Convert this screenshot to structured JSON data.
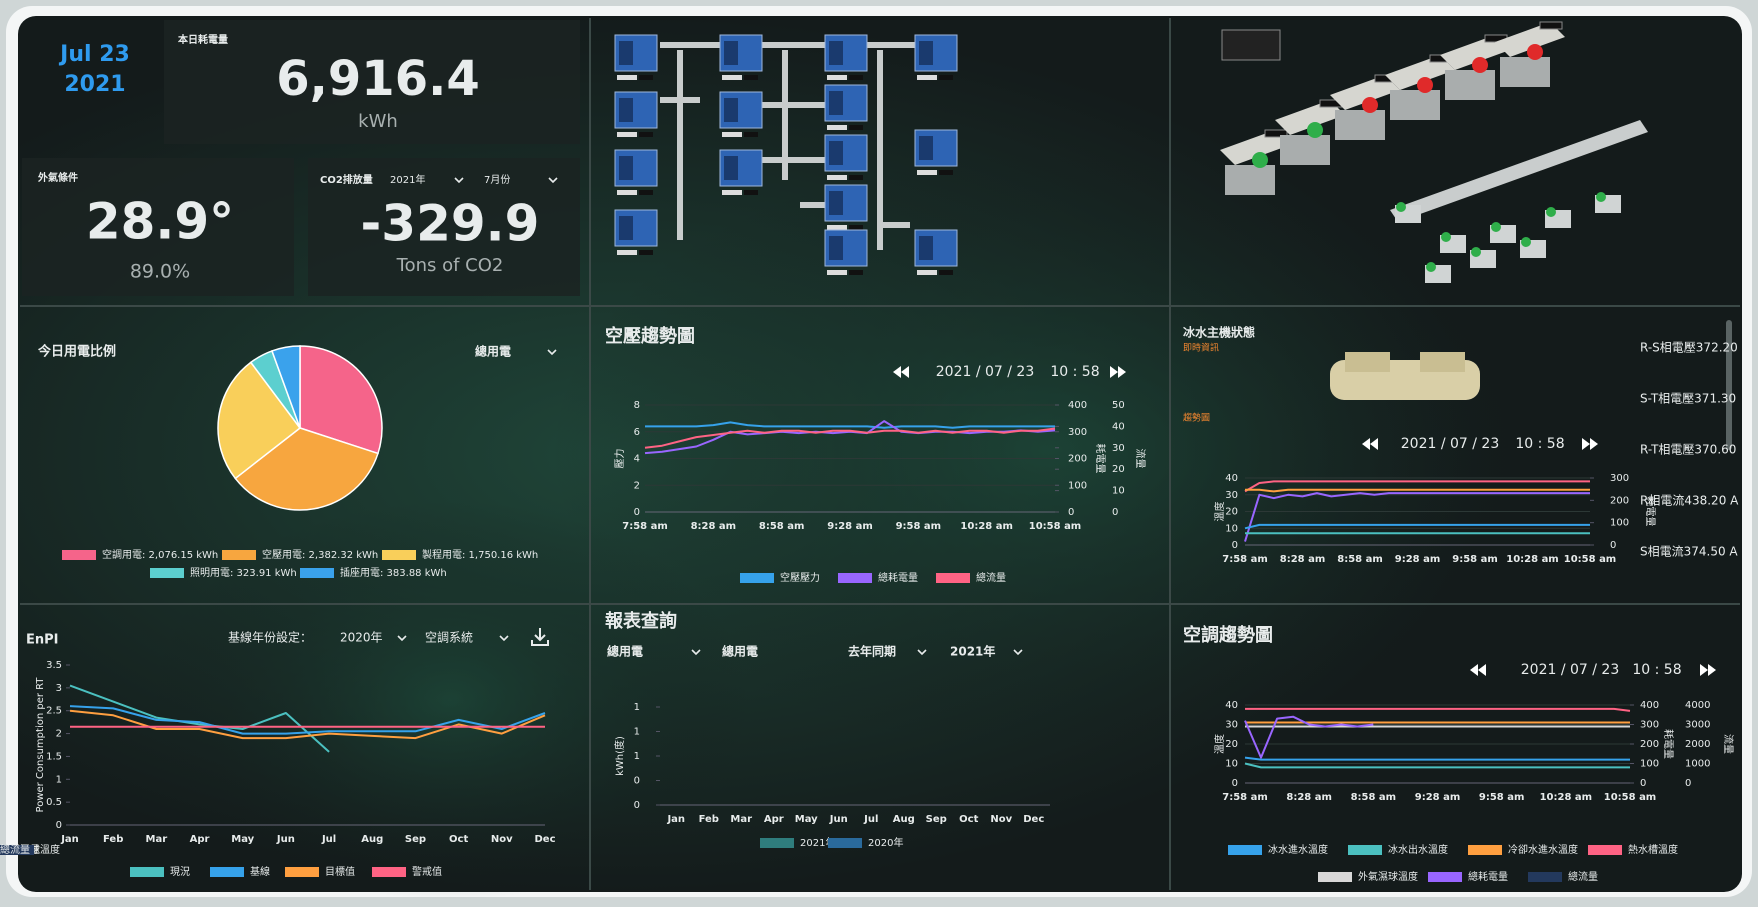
{
  "date": {
    "month_day": "Jul 23",
    "year": "2021"
  },
  "daily_energy": {
    "label": "本日耗電量",
    "value": "6,916.4",
    "unit": "kWh"
  },
  "weather": {
    "label": "外氣條件",
    "temperature": "28.9°",
    "humidity": "89.0%"
  },
  "co2": {
    "label": "CO2排放量",
    "year": "2021年",
    "month": "7月份",
    "value": "-329.9",
    "unit": "Tons of CO2"
  },
  "pie_panel": {
    "filter": "總用電"
  },
  "air_nav": {
    "date": "2021 / 07 / 23",
    "time": "10 : 58"
  },
  "chiller_panel": {
    "title": "冰水主機狀態",
    "realtime": "即時資訊",
    "trend": "趨勢圖",
    "date": "2021 / 07 / 23",
    "time": "10 : 58",
    "readings": [
      "R-S相電壓372.20",
      "S-T相電壓371.30",
      "R-T相電壓370.60",
      "R相電流438.20 A",
      "S相電流374.50 A"
    ]
  },
  "hvac_nav": {
    "date": "2021 / 07 / 23",
    "time": "10 : 58"
  },
  "enpi_panel": {
    "baseline_label": "基線年份設定：",
    "baseline_year": "2020年",
    "system": "空調系統"
  },
  "report_panel": {
    "title": "報表查詢",
    "filters": [
      "總用電",
      "總用電",
      "去年同期",
      "2021年"
    ]
  },
  "chart_data": [
    {
      "type": "pie",
      "title": "今日用電比例",
      "categories": [
        "空調用電: 2,076.15 kWh",
        "空壓用電: 2,382.32 kWh",
        "製程用電: 1,750.16 kWh",
        "照明用電: 323.91 kWh",
        "插座用電: 383.88 kWh"
      ],
      "values": [
        2076.15,
        2382.32,
        1750.16,
        323.91,
        383.88
      ],
      "colors": [
        "#f5648a",
        "#f7a63f",
        "#f9cf5a",
        "#5ccfcf",
        "#3aa2ec"
      ]
    },
    {
      "type": "line",
      "title": "空壓趨勢圖",
      "categories": [
        "7:58 am",
        null,
        null,
        null,
        "8:28 am",
        null,
        null,
        null,
        "8:58 am",
        null,
        null,
        null,
        "9:28 am",
        null,
        null,
        null,
        "9:58 am",
        null,
        null,
        null,
        "10:28 am",
        null,
        null,
        null,
        "10:58 am"
      ],
      "ylabel": "壓力",
      "ylim": [
        0,
        8
      ],
      "yticks": [
        0,
        2,
        4,
        6,
        8
      ],
      "y2label": "耗電量",
      "y2lim": [
        0,
        400
      ],
      "y2ticks": [
        0,
        100,
        200,
        300,
        400
      ],
      "y3label": "流量",
      "y3lim": [
        0,
        50
      ],
      "y3ticks": [
        0,
        10,
        20,
        30,
        40,
        50
      ],
      "grid": true,
      "series": [
        {
          "name": "空壓壓力",
          "color": "#36a2eb",
          "values": [
            6.4,
            6.4,
            6.4,
            6.4,
            6.5,
            6.7,
            6.5,
            6.4,
            6.4,
            6.4,
            6.4,
            6.4,
            6.4,
            6.4,
            6.3,
            6.4,
            6.4,
            6.4,
            6.3,
            6.4,
            6.4,
            6.4,
            6.4,
            6.4,
            6.4
          ]
        },
        {
          "name": "總耗電量",
          "color": "#9966ff",
          "axis": "y2",
          "values": [
            220,
            225,
            235,
            245,
            270,
            300,
            290,
            295,
            300,
            295,
            300,
            295,
            300,
            295,
            340,
            300,
            295,
            300,
            300,
            295,
            300,
            300,
            305,
            300,
            305
          ]
        },
        {
          "name": "總流量",
          "color": "#ff6384",
          "axis": "y3",
          "values": [
            30,
            31,
            33,
            35,
            36,
            37,
            38,
            37,
            38,
            38,
            37,
            38,
            38,
            37,
            38,
            38,
            37,
            38,
            37,
            38,
            38,
            37,
            38,
            38,
            39
          ]
        }
      ]
    },
    {
      "type": "line",
      "categories": [
        "7:58 am",
        null,
        null,
        null,
        "8:28 am",
        null,
        null,
        null,
        "8:58 am",
        null,
        null,
        null,
        "9:28 am",
        null,
        null,
        null,
        "9:58 am",
        null,
        null,
        null,
        "10:28 am",
        null,
        null,
        null,
        "10:58 am"
      ],
      "ylabel": "溫度",
      "ylim": [
        0,
        40
      ],
      "yticks": [
        0,
        10,
        20,
        30,
        40
      ],
      "y2label": "耗電量",
      "y2lim": [
        0,
        300
      ],
      "y2ticks": [
        0,
        100,
        200,
        300
      ],
      "grid": true,
      "series": [
        {
          "color": "#ff6384",
          "values": [
            32,
            37,
            38,
            38,
            38,
            38,
            38,
            38,
            38,
            38,
            38,
            38,
            38,
            38,
            38,
            38,
            38,
            38,
            38,
            38,
            38,
            38,
            38,
            38,
            38
          ]
        },
        {
          "color": "#ff9f40",
          "values": [
            33,
            33,
            32,
            33,
            33,
            33,
            33,
            33,
            33,
            33,
            33,
            33,
            33,
            33,
            33,
            33,
            33,
            33,
            33,
            33,
            33,
            33,
            33,
            33,
            33
          ]
        },
        {
          "color": "#9966ff",
          "values": [
            2,
            30,
            28,
            30,
            29,
            31,
            29,
            30,
            31,
            30,
            31,
            31,
            31,
            31,
            31,
            31,
            31,
            31,
            31,
            31,
            31,
            31,
            31,
            31,
            31
          ]
        },
        {
          "color": "#36a2eb",
          "values": [
            10,
            12,
            12,
            12,
            12,
            12,
            12,
            12,
            12,
            12,
            12,
            12,
            12,
            12,
            12,
            12,
            12,
            12,
            12,
            12,
            12,
            12,
            12,
            12,
            12
          ]
        },
        {
          "color": "#4bc0c0",
          "values": [
            7,
            7,
            7,
            7,
            7,
            7,
            7,
            7,
            7,
            7,
            7,
            7,
            7,
            7,
            7,
            7,
            7,
            7,
            7,
            7,
            7,
            7,
            7,
            7,
            7
          ]
        }
      ]
    },
    {
      "type": "line",
      "title": "空調趨勢圖",
      "categories": [
        "7:58 am",
        null,
        null,
        null,
        "8:28 am",
        null,
        null,
        null,
        "8:58 am",
        null,
        null,
        null,
        "9:28 am",
        null,
        null,
        null,
        "9:58 am",
        null,
        null,
        null,
        "10:28 am",
        null,
        null,
        null,
        "10:58 am"
      ],
      "ylabel": "溫度",
      "ylim": [
        0,
        40
      ],
      "yticks": [
        0,
        10,
        20,
        30,
        40
      ],
      "y2label": "耗電量",
      "y2lim": [
        0,
        400
      ],
      "y2ticks": [
        0,
        100,
        200,
        300,
        400
      ],
      "y3label": "流量",
      "y3lim": [
        0,
        4000
      ],
      "y3ticks": [
        0,
        1000,
        2000,
        3000,
        4000
      ],
      "grid": true,
      "series": [
        {
          "name": "冰水進水溫度",
          "color": "#36a2eb",
          "values": [
            13,
            12,
            12,
            12,
            12,
            12,
            12,
            12,
            12,
            12,
            12,
            12,
            12,
            12,
            12,
            12,
            12,
            12,
            12,
            12,
            12,
            12,
            12,
            12,
            12
          ]
        },
        {
          "name": "冰水出水溫度",
          "color": "#4bc0c0",
          "values": [
            10,
            8,
            8,
            8,
            8,
            8,
            8,
            8,
            8,
            8,
            8,
            8,
            8,
            8,
            8,
            8,
            8,
            8,
            8,
            8,
            8,
            8,
            8,
            8,
            8
          ]
        },
        {
          "name": "冷卻水進水溫度",
          "color": "#ff9f40",
          "values": [
            31,
            31,
            31,
            31,
            31,
            31,
            31,
            31,
            31,
            31,
            31,
            31,
            31,
            31,
            31,
            31,
            31,
            31,
            31,
            31,
            31,
            31,
            31,
            31,
            31
          ]
        },
        {
          "name": "熱水槽溫度",
          "color": "#ff6384",
          "values": [
            38,
            38,
            38,
            38,
            38,
            38,
            38,
            38,
            38,
            38,
            38,
            38,
            38,
            38,
            38,
            38,
            38,
            38,
            38,
            38,
            38,
            38,
            38,
            38,
            37
          ]
        },
        {
          "name": "外氣濕球溫度",
          "color": "#d8d8d8",
          "values": [
            29,
            29,
            29,
            29,
            29,
            29,
            29,
            29,
            29,
            29,
            29,
            29,
            29,
            29,
            29,
            29,
            29,
            29,
            29,
            29,
            29,
            29,
            29,
            29,
            29
          ]
        },
        {
          "name": "總耗電量",
          "color": "#9966ff",
          "axis": "y2",
          "values": [
            320,
            130,
            330,
            340,
            300,
            290,
            300,
            290,
            300,
            null,
            null,
            null,
            null,
            null,
            null,
            null,
            null,
            null,
            null,
            null,
            null,
            null,
            null,
            null,
            null
          ]
        },
        {
          "name": "總流量",
          "color": "#23395d",
          "axis": "y3",
          "values": [
            null,
            null,
            null,
            null,
            null,
            null,
            null,
            null,
            null,
            null,
            null,
            null,
            null,
            null,
            null,
            null,
            null,
            null,
            null,
            null,
            null,
            null,
            null,
            null,
            null
          ]
        }
      ]
    },
    {
      "type": "line",
      "title": "EnPI",
      "categories": [
        "Jan",
        "Feb",
        "Mar",
        "Apr",
        "May",
        "Jun",
        "Jul",
        "Aug",
        "Sep",
        "Oct",
        "Nov",
        "Dec"
      ],
      "ylabel": "Power Consumption per RT",
      "ylim": [
        0,
        3.5
      ],
      "yticks": [
        0,
        0.5,
        1,
        1.5,
        2,
        2.5,
        3,
        3.5
      ],
      "grid": false,
      "series": [
        {
          "name": "現況",
          "color": "#4bc0c0",
          "values": [
            3.05,
            2.7,
            2.35,
            2.2,
            2.1,
            2.45,
            1.6,
            null,
            null,
            null,
            null,
            null
          ]
        },
        {
          "name": "基線",
          "color": "#36a2eb",
          "values": [
            2.6,
            2.55,
            2.3,
            2.25,
            2.0,
            2.0,
            2.05,
            2.05,
            2.05,
            2.3,
            2.1,
            2.45
          ]
        },
        {
          "name": "目標值",
          "color": "#ff9f40",
          "values": [
            2.5,
            2.4,
            2.1,
            2.1,
            1.9,
            1.9,
            2.0,
            1.95,
            1.9,
            2.2,
            2.0,
            2.4
          ]
        },
        {
          "name": "警戒值",
          "color": "#ff6384",
          "values": [
            2.15,
            2.15,
            2.15,
            2.15,
            2.15,
            2.15,
            2.15,
            2.15,
            2.15,
            2.15,
            2.15,
            2.15
          ]
        }
      ]
    },
    {
      "type": "bar",
      "categories": [
        "Jan",
        "Feb",
        "Mar",
        "Apr",
        "May",
        "Jun",
        "Jul",
        "Aug",
        "Sep",
        "Oct",
        "Nov",
        "Dec"
      ],
      "ylabel": "kWh(度)",
      "ylim": [
        0,
        1
      ],
      "yticks": [
        0,
        {
          "value": 0.25,
          "label": "0"
        },
        {
          "value": 0.5,
          "label": "1"
        },
        {
          "value": 0.75,
          "label": "1"
        },
        1
      ],
      "series": [
        {
          "name": "2021年",
          "color": "#2f7d7d",
          "values": [
            0,
            0,
            0,
            0,
            0,
            0,
            0,
            0,
            0,
            0,
            0,
            0
          ]
        },
        {
          "name": "2020年",
          "color": "#2a6a9c",
          "values": [
            0,
            0,
            0,
            0,
            0,
            0,
            0,
            0,
            0,
            0,
            0,
            0
          ]
        }
      ]
    }
  ]
}
